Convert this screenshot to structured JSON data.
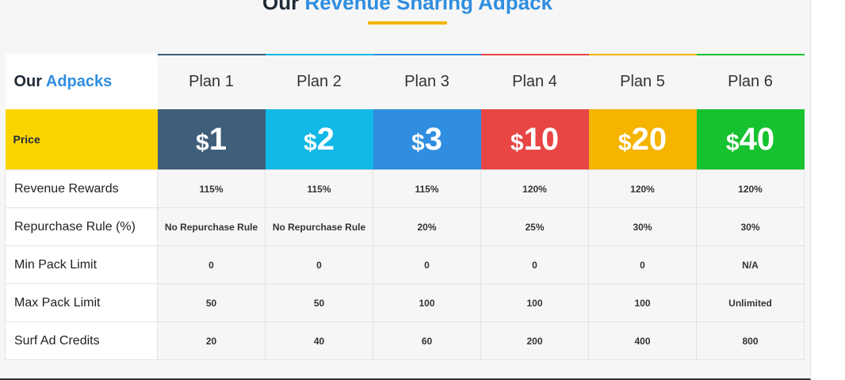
{
  "heading": {
    "part1": "Our",
    "part2": "Revenue Sharing Adpack"
  },
  "table": {
    "corner": {
      "part1": "Our",
      "part2": "Adpacks"
    },
    "plans": [
      {
        "name": "Plan 1",
        "currency": "$",
        "price": "1",
        "color": "#3e5e7a"
      },
      {
        "name": "Plan 2",
        "currency": "$",
        "price": "2",
        "color": "#12b8e6"
      },
      {
        "name": "Plan 3",
        "currency": "$",
        "price": "3",
        "color": "#2f8ee0"
      },
      {
        "name": "Plan 4",
        "currency": "$",
        "price": "10",
        "color": "#e84545"
      },
      {
        "name": "Plan 5",
        "currency": "$",
        "price": "20",
        "color": "#f4b400"
      },
      {
        "name": "Plan 6",
        "currency": "$",
        "price": "40",
        "color": "#16c22f"
      }
    ],
    "price_label": "Price",
    "rows": [
      {
        "label": "Revenue Rewards",
        "values": [
          "115%",
          "115%",
          "115%",
          "120%",
          "120%",
          "120%"
        ]
      },
      {
        "label": "Repurchase Rule (%)",
        "values": [
          "No Repurchase Rule",
          "No Repurchase Rule",
          "20%",
          "25%",
          "30%",
          "30%"
        ]
      },
      {
        "label": "Min Pack Limit",
        "values": [
          "0",
          "0",
          "0",
          "0",
          "0",
          "N/A"
        ]
      },
      {
        "label": "Max Pack Limit",
        "values": [
          "50",
          "50",
          "100",
          "100",
          "100",
          "Unlimited"
        ]
      },
      {
        "label": "Surf Ad Credits",
        "values": [
          "20",
          "40",
          "60",
          "200",
          "400",
          "800"
        ]
      }
    ]
  }
}
